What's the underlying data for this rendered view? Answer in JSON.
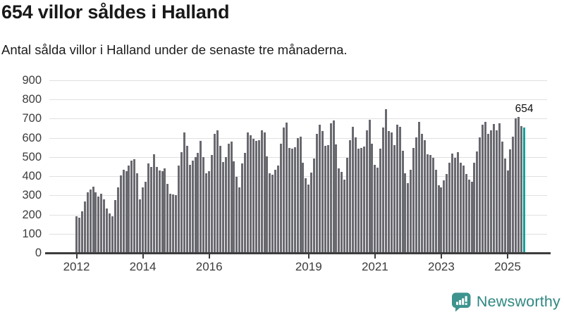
{
  "header": {
    "title": "654 villor såldes i Halland",
    "subtitle": "Antal sålda villor i Halland under de senaste tre månaderna."
  },
  "chart_data": {
    "type": "bar",
    "title": "654 villor såldes i Halland",
    "subtitle": "Antal sålda villor i Halland under de senaste tre månaderna.",
    "xlabel": "",
    "ylabel": "",
    "ylim": [
      0,
      900
    ],
    "grid": true,
    "legend_position": "none",
    "y_ticks": [
      0,
      100,
      200,
      300,
      400,
      500,
      600,
      700,
      800,
      900
    ],
    "x_ticks": [
      {
        "label": "2012",
        "month_index": 0
      },
      {
        "label": "2014",
        "month_index": 24
      },
      {
        "label": "2016",
        "month_index": 48
      },
      {
        "label": "2019",
        "month_index": 84
      },
      {
        "label": "2021",
        "month_index": 108
      },
      {
        "label": "2023",
        "month_index": 132
      },
      {
        "label": "2025",
        "month_index": 156
      }
    ],
    "start_period": "2012-01",
    "frequency": "monthly (rolling 3-month total)",
    "bar_color": "#696970",
    "values": [
      190,
      185,
      215,
      270,
      315,
      330,
      345,
      315,
      295,
      310,
      280,
      230,
      205,
      190,
      275,
      340,
      405,
      435,
      425,
      455,
      480,
      490,
      415,
      280,
      340,
      370,
      465,
      450,
      515,
      448,
      430,
      425,
      440,
      360,
      310,
      305,
      300,
      455,
      525,
      630,
      560,
      460,
      480,
      500,
      520,
      585,
      500,
      415,
      425,
      510,
      620,
      640,
      560,
      475,
      500,
      570,
      580,
      478,
      395,
      340,
      465,
      520,
      630,
      615,
      595,
      585,
      587,
      640,
      630,
      505,
      415,
      407,
      435,
      456,
      570,
      655,
      680,
      546,
      542,
      550,
      600,
      605,
      470,
      390,
      355,
      420,
      493,
      620,
      670,
      635,
      558,
      562,
      675,
      690,
      567,
      439,
      423,
      382,
      497,
      587,
      657,
      604,
      542,
      546,
      555,
      641,
      694,
      571,
      460,
      444,
      542,
      653,
      750,
      636,
      630,
      562,
      669,
      657,
      534,
      415,
      365,
      432,
      546,
      604,
      685,
      620,
      587,
      513,
      509,
      497,
      432,
      353,
      343,
      378,
      411,
      469,
      518,
      497,
      525,
      472,
      456,
      411,
      382,
      370,
      472,
      530,
      604,
      669,
      685,
      620,
      641,
      673,
      640,
      675,
      580,
      493,
      430,
      540,
      605,
      700,
      710,
      660,
      654
    ],
    "highlight": {
      "index": 162,
      "value": 654,
      "label": "654",
      "color": "#12a39b"
    }
  },
  "footer": {
    "brand": "Newsworthy",
    "logo_color": "#3d948e",
    "text_color": "#2f8781",
    "icon": "newsworthy-logo-icon"
  }
}
